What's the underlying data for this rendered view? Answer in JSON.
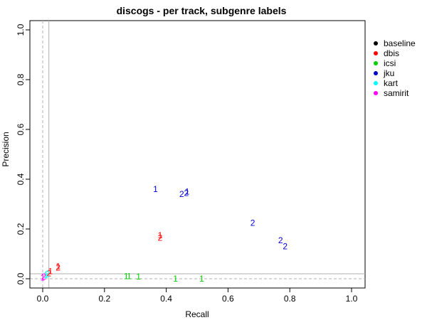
{
  "chart_data": {
    "type": "scatter",
    "title": "discogs - per track, subgenre labels",
    "xlabel": "Recall",
    "ylabel": "Precision",
    "xlim": [
      0,
      1
    ],
    "ylim": [
      0,
      1
    ],
    "xticks": [
      "0.0",
      "0.2",
      "0.4",
      "0.6",
      "0.8",
      "1.0"
    ],
    "yticks": [
      "0.0",
      "0.2",
      "0.4",
      "0.6",
      "0.8",
      "1.0"
    ],
    "legend_position": "right",
    "grid": false,
    "reference_lines": {
      "solid_vertical_x": 0.02,
      "solid_horizontal_y": 0.02,
      "dashed_vertical_x": 0.0,
      "dashed_horizontal_y": 0.0
    },
    "series": [
      {
        "name": "baseline",
        "color": "#000000",
        "points": []
      },
      {
        "name": "dbis",
        "color": "#ff0000",
        "points": [
          {
            "label": "1",
            "x": 0.05,
            "y": 0.05
          },
          {
            "label": "2",
            "x": 0.05,
            "y": 0.045
          },
          {
            "label": "1",
            "x": 0.025,
            "y": 0.03
          },
          {
            "label": "2",
            "x": 0.02,
            "y": 0.022
          },
          {
            "label": "1",
            "x": 0.38,
            "y": 0.175
          },
          {
            "label": "2",
            "x": 0.38,
            "y": 0.165
          }
        ]
      },
      {
        "name": "icsi",
        "color": "#00cd00",
        "points": [
          {
            "label": "1",
            "x": 0.27,
            "y": 0.01
          },
          {
            "label": "1",
            "x": 0.28,
            "y": 0.01
          },
          {
            "label": "1",
            "x": 0.31,
            "y": 0.008
          },
          {
            "label": "1",
            "x": 0.43,
            "y": 0.0
          },
          {
            "label": "1",
            "x": 0.515,
            "y": 0.0
          }
        ]
      },
      {
        "name": "jku",
        "color": "#0000cd",
        "points": [
          {
            "label": "1",
            "x": 0.365,
            "y": 0.36
          },
          {
            "label": "2",
            "x": 0.45,
            "y": 0.34
          },
          {
            "label": "2",
            "x": 0.465,
            "y": 0.345
          },
          {
            "label": "1",
            "x": 0.468,
            "y": 0.35
          },
          {
            "label": "2",
            "x": 0.68,
            "y": 0.225
          },
          {
            "label": "2",
            "x": 0.77,
            "y": 0.155
          },
          {
            "label": "2",
            "x": 0.785,
            "y": 0.13
          }
        ]
      },
      {
        "name": "kart",
        "color": "#00ffff",
        "points": [
          {
            "label": "1",
            "x": 0.01,
            "y": 0.015
          },
          {
            "label": "2",
            "x": 0.015,
            "y": 0.02
          }
        ]
      },
      {
        "name": "samirit",
        "color": "#ff00ff",
        "points": [
          {
            "label": "1",
            "x": 0.0,
            "y": 0.005
          },
          {
            "label": "2",
            "x": 0.003,
            "y": 0.008
          }
        ]
      }
    ]
  }
}
